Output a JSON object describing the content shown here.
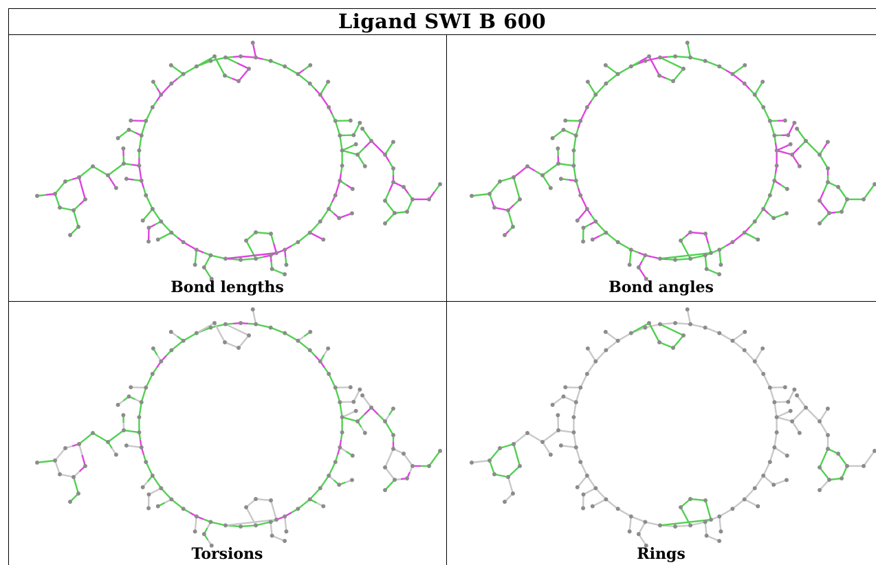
{
  "title": "Ligand SWI B 600",
  "colors": {
    "outlier": "#e040e0",
    "ok": "#50d050",
    "none": "#c8c8c8",
    "atom": "#8c8c8c"
  },
  "panels": [
    {
      "id": "bond-lengths",
      "caption": "Bond lengths",
      "scheme": "alt"
    },
    {
      "id": "bond-angles",
      "caption": "Bond angles",
      "scheme": "alt2"
    },
    {
      "id": "torsions",
      "caption": "Torsions",
      "scheme": "torsion"
    },
    {
      "id": "rings",
      "caption": "Rings",
      "scheme": "rings"
    }
  ]
}
